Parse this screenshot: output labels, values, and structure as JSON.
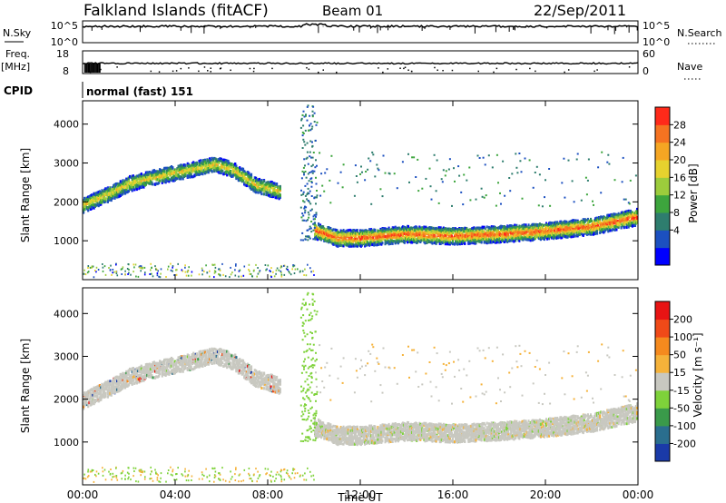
{
  "header": {
    "title": "Falkland Islands (fitACF)",
    "beam": "Beam 01",
    "date": "22/Sep/2011"
  },
  "strips": {
    "nsky_label": "N.Sky",
    "nsky_ticks": [
      "10^5",
      "10^0"
    ],
    "nsearch_label": "N.Search",
    "nsearch_ticks": [
      "10^5",
      "10^0"
    ],
    "freq_label": "Freq.",
    "freq_unit": "[MHz]",
    "freq_ticks": [
      "18",
      "8"
    ],
    "nave_label": "Nave",
    "nave_ticks": [
      "60",
      "0"
    ],
    "cpid_label": "CPID",
    "cpid_text": "normal (fast) 151"
  },
  "chart_data": [
    {
      "type": "heatmap",
      "panel": "power",
      "ylabel": "Slant Range [km]",
      "ylim": [
        0,
        4600
      ],
      "yticks": [
        "4000",
        "3000",
        "2000",
        "1000"
      ],
      "xlim": [
        0,
        24
      ],
      "colorbar": {
        "label": "Power [dB]",
        "ticks": [
          "28",
          "24",
          "20",
          "16",
          "12",
          "8",
          "4"
        ],
        "colors": [
          "#0000ff",
          "#1c50c0",
          "#2e7d6e",
          "#3da53d",
          "#9ccc3c",
          "#e6d22e",
          "#f5a623",
          "#f57321",
          "#ff2a1a"
        ]
      },
      "features": [
        {
          "name": "morning echo band",
          "t": [
            0,
            1,
            2,
            3,
            4,
            5,
            5.7,
            6.5,
            7.5,
            8.5
          ],
          "range_km": [
            1950,
            2200,
            2500,
            2650,
            2780,
            2900,
            3000,
            2850,
            2450,
            2300
          ]
        },
        {
          "name": "main echo band",
          "t": [
            10,
            11,
            12,
            14,
            16,
            18,
            20,
            22,
            24
          ],
          "range_km": [
            1300,
            1100,
            1100,
            1200,
            1150,
            1200,
            1280,
            1400,
            1650
          ]
        }
      ]
    },
    {
      "type": "heatmap",
      "panel": "velocity",
      "ylabel": "Slant Range [km]",
      "ylim": [
        0,
        4600
      ],
      "yticks": [
        "4000",
        "3000",
        "2000",
        "1000"
      ],
      "xlim": [
        0,
        24
      ],
      "colorbar": {
        "label": "Velocity [m s⁻¹]",
        "ticks": [
          "200",
          "100",
          "50",
          "15",
          "-15",
          "-50",
          "-100",
          "-200"
        ],
        "colors": [
          "#1a3aa8",
          "#2a6e8e",
          "#3a9a4a",
          "#7ed23a",
          "#c8c8c0",
          "#f5b23a",
          "#f58a1e",
          "#f04a18",
          "#e81414"
        ]
      }
    }
  ],
  "xaxis": {
    "ticks": [
      "00:00",
      "04:00",
      "08:00",
      "12:00",
      "16:00",
      "20:00",
      "00:00"
    ],
    "label": "Time UT"
  }
}
